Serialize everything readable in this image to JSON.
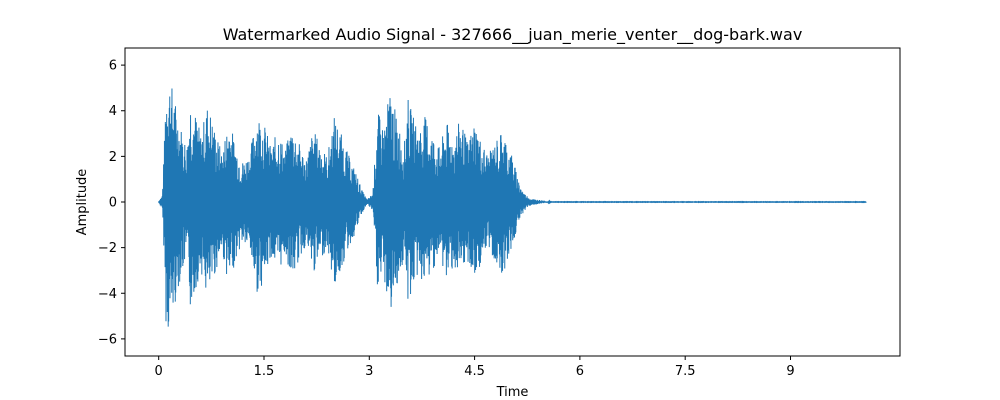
{
  "chart_data": {
    "type": "line",
    "title": "Watermarked Audio Signal - 327666__juan_merie_venter__dog-bark.wav",
    "xlabel": "Time",
    "ylabel": "Amplitude",
    "xlim": [
      -0.48,
      10.56
    ],
    "ylim": [
      -6.75,
      6.75
    ],
    "xticks": [
      0,
      1.5,
      3,
      4.5,
      6,
      7.5,
      9
    ],
    "xtick_labels": [
      "0",
      "1.5",
      "3",
      "4.5",
      "6",
      "7.5",
      "9"
    ],
    "yticks": [
      -6,
      -4,
      -2,
      0,
      2,
      4,
      6
    ],
    "ytick_labels": [
      "−6",
      "−4",
      "−2",
      "0",
      "2",
      "4",
      "6"
    ],
    "grid": false,
    "series": [
      {
        "color": "#1f77b4",
        "duration": 10.08,
        "envelope": [
          [
            0.0,
            0.05
          ],
          [
            0.05,
            0.3
          ],
          [
            0.08,
            2.5
          ],
          [
            0.1,
            5.2
          ],
          [
            0.13,
            5.8
          ],
          [
            0.2,
            5.0
          ],
          [
            0.3,
            3.5
          ],
          [
            0.4,
            2.5
          ],
          [
            0.45,
            4.7
          ],
          [
            0.5,
            4.2
          ],
          [
            0.6,
            3.0
          ],
          [
            0.7,
            4.4
          ],
          [
            0.8,
            3.2
          ],
          [
            0.9,
            2.2
          ],
          [
            1.0,
            3.7
          ],
          [
            1.1,
            2.5
          ],
          [
            1.2,
            1.8
          ],
          [
            1.3,
            2.2
          ],
          [
            1.4,
            4.0
          ],
          [
            1.5,
            3.5
          ],
          [
            1.6,
            2.4
          ],
          [
            1.7,
            3.2
          ],
          [
            1.8,
            2.3
          ],
          [
            1.9,
            3.4
          ],
          [
            2.0,
            2.6
          ],
          [
            2.1,
            1.9
          ],
          [
            2.2,
            3.2
          ],
          [
            2.3,
            2.6
          ],
          [
            2.4,
            2.0
          ],
          [
            2.5,
            3.8
          ],
          [
            2.6,
            3.0
          ],
          [
            2.7,
            2.1
          ],
          [
            2.8,
            1.4
          ],
          [
            2.9,
            0.5
          ],
          [
            2.97,
            0.1
          ],
          [
            3.05,
            0.4
          ],
          [
            3.12,
            4.0
          ],
          [
            3.2,
            3.3
          ],
          [
            3.3,
            5.0
          ],
          [
            3.4,
            3.6
          ],
          [
            3.5,
            2.6
          ],
          [
            3.55,
            4.6
          ],
          [
            3.6,
            4.0
          ],
          [
            3.7,
            3.2
          ],
          [
            3.8,
            3.8
          ],
          [
            3.9,
            3.0
          ],
          [
            4.0,
            2.4
          ],
          [
            4.1,
            3.5
          ],
          [
            4.2,
            2.8
          ],
          [
            4.3,
            3.7
          ],
          [
            4.4,
            2.6
          ],
          [
            4.5,
            3.6
          ],
          [
            4.6,
            2.6
          ],
          [
            4.7,
            2.1
          ],
          [
            4.8,
            2.7
          ],
          [
            4.9,
            3.2
          ],
          [
            5.0,
            2.3
          ],
          [
            5.05,
            2.0
          ],
          [
            5.1,
            1.2
          ],
          [
            5.2,
            0.4
          ],
          [
            5.3,
            0.15
          ],
          [
            5.5,
            0.05
          ],
          [
            5.6,
            0.01
          ],
          [
            10.08,
            0.01
          ]
        ]
      }
    ]
  }
}
